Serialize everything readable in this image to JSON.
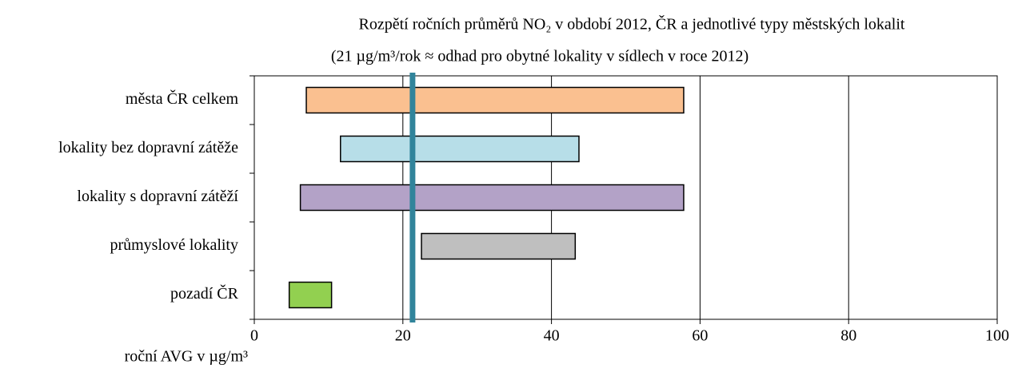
{
  "chart_data": {
    "type": "range_bar",
    "title": "Rozpětí ročních průměrů NO₂ v období  2012, ČR a jednotlivé typy městských lokalit",
    "subtitle": "(21 µg/m³/rok ≈ odhad pro obytné lokality v sídlech v roce 2012)",
    "x_label": "roční AVG v µg/m³",
    "categories": [
      "města ČR celkem",
      "lokality bez dopravní zátěže",
      "lokality s dopravní zátěží",
      "průmyslové lokality",
      "pozadí ČR"
    ],
    "low": [
      7.0,
      11.6,
      6.2,
      22.5,
      4.7
    ],
    "high": [
      57.8,
      43.7,
      57.8,
      43.2,
      10.4
    ],
    "colors": [
      "#fac090",
      "#b7dee8",
      "#b3a2c7",
      "#bfbfbf",
      "#92d050"
    ],
    "reference_line": 21.3,
    "reference_color": "#31849b",
    "xlim": [
      0,
      100
    ],
    "xticks": [
      0,
      20,
      40,
      60,
      80,
      100
    ],
    "grid": true
  }
}
